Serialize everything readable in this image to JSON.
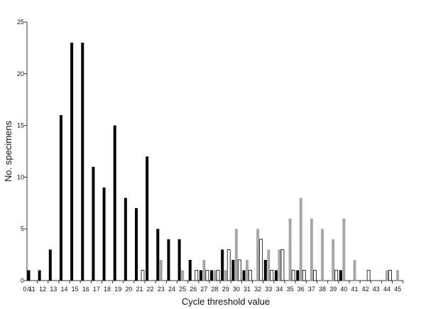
{
  "chart_data": {
    "type": "bar",
    "xlabel": "Cycle threshold value",
    "ylabel": "No. specimens",
    "ylim": [
      0,
      25
    ],
    "yticks": [
      0,
      5,
      10,
      15,
      20,
      25
    ],
    "x_zero_label": "0",
    "axis_break": "//",
    "grid": false,
    "categories": [
      "11",
      "12",
      "13",
      "14",
      "15",
      "16",
      "17",
      "18",
      "19",
      "20",
      "21",
      "22",
      "23",
      "24",
      "25",
      "26",
      "27",
      "28",
      "29",
      "30",
      "31",
      "32",
      "33",
      "34",
      "35",
      "36",
      "37",
      "38",
      "39",
      "40",
      "41",
      "42",
      "43",
      "44",
      "45"
    ],
    "series": [
      {
        "values": [
          1,
          1,
          3,
          16,
          23,
          23,
          11,
          9,
          15,
          8,
          7,
          12,
          5,
          4,
          4,
          2,
          1,
          1,
          3,
          2,
          1,
          0,
          2,
          1,
          0,
          1,
          0,
          0,
          0,
          1,
          0,
          0,
          0,
          0,
          0
        ],
        "color": "#000000",
        "fill": "solid"
      },
      {
        "values": [
          0,
          0,
          0,
          0,
          0,
          0,
          0,
          0,
          0,
          0,
          0,
          0,
          2,
          0,
          1,
          0,
          2,
          1,
          1,
          5,
          2,
          5,
          3,
          3,
          6,
          8,
          6,
          5,
          4,
          6,
          2,
          0,
          0,
          1,
          1
        ],
        "color": "#a6a6a6",
        "fill": "solid"
      },
      {
        "values": [
          0,
          0,
          0,
          0,
          0,
          0,
          0,
          0,
          0,
          0,
          1,
          0,
          0,
          0,
          0,
          1,
          1,
          1,
          3,
          2,
          1,
          4,
          1,
          3,
          1,
          1,
          1,
          0,
          1,
          0,
          0,
          1,
          0,
          1,
          0
        ],
        "color": "#000000",
        "fill": "hollow"
      }
    ]
  }
}
